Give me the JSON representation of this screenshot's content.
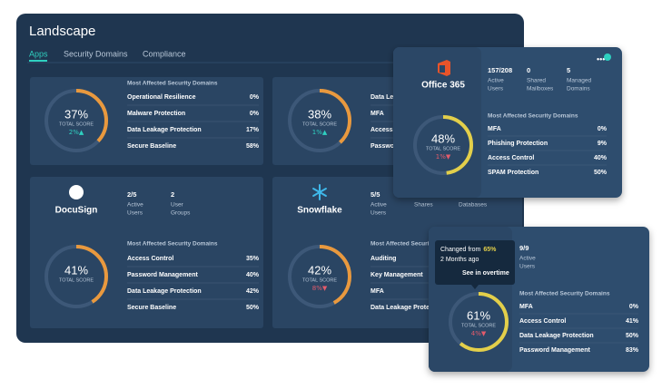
{
  "header": {
    "title": "Landscape",
    "tabs": [
      "Apps",
      "Security Domains",
      "Compliance"
    ]
  },
  "cards": [
    {
      "gauge": {
        "score": "37%",
        "label": "TOTAL SCORE",
        "change": "2%▲",
        "color": "#e9993e"
      },
      "domains": {
        "heading": "Most Affected Security Domains",
        "rows": [
          {
            "name": "Operational Resilience",
            "value": "0%"
          },
          {
            "name": "Malware Protection",
            "value": "0%"
          },
          {
            "name": "Data Leakage Protection",
            "value": "17%"
          },
          {
            "name": "Secure Baseline",
            "value": "58%"
          }
        ]
      }
    },
    {
      "gauge": {
        "score": "38%",
        "label": "TOTAL SCORE",
        "change": "1%▲",
        "color": "#e9993e"
      },
      "domains": {
        "rows": [
          {
            "name": "Data Lea"
          },
          {
            "name": "MFA"
          },
          {
            "name": "Access C"
          },
          {
            "name": "Passwo"
          }
        ]
      }
    },
    {
      "name": "DocuSign",
      "stats": [
        {
          "value": "2/5",
          "label": [
            "Active",
            "Users"
          ]
        },
        {
          "value": "2",
          "label": [
            "User",
            "Groups"
          ]
        }
      ],
      "gauge": {
        "score": "41%",
        "label": "TOTAL SCORE",
        "color": "#e9993e"
      },
      "domains": {
        "heading": "Most Affected Security Domains",
        "rows": [
          {
            "name": "Access Control",
            "value": "35%"
          },
          {
            "name": "Password Management",
            "value": "40%"
          },
          {
            "name": "Data Leakage Protection",
            "value": "42%"
          },
          {
            "name": "Secure Baseline",
            "value": "50%"
          }
        ]
      }
    },
    {
      "name": "Snowflake",
      "stats": [
        {
          "value": "5/5",
          "label": [
            "Active",
            "Users"
          ]
        },
        {
          "label": [
            "Shares"
          ]
        },
        {
          "label": [
            "Databases"
          ]
        }
      ],
      "gauge": {
        "score": "42%",
        "label": "TOTAL SCORE",
        "change": "8%▼",
        "color": "#e9993e"
      },
      "domains": {
        "heading": "Most Affected Security Domains",
        "rows": [
          {
            "name": "Auditing"
          },
          {
            "name": "Key Management"
          },
          {
            "name": "MFA"
          },
          {
            "name": "Data Leakage Protection"
          }
        ]
      }
    },
    {
      "name": "Office 365",
      "stats": [
        {
          "value": "157/208",
          "label": [
            "Active",
            "Users"
          ]
        },
        {
          "value": "0",
          "label": [
            "Shared",
            "Mailboxes"
          ]
        },
        {
          "value": "5",
          "label": [
            "Managed",
            "Domains"
          ]
        }
      ],
      "gauge": {
        "score": "48%",
        "label": "TOTAL SCORE",
        "change": "1%▼",
        "color": "#e3cf4a"
      },
      "domains": {
        "heading": "Most Affected Security Domains",
        "rows": [
          {
            "name": "MFA",
            "value": "0%"
          },
          {
            "name": "Phishing Protection",
            "value": "9%"
          },
          {
            "name": "Access Control",
            "value": "40%"
          },
          {
            "name": "SPAM Protection",
            "value": "50%"
          }
        ]
      }
    },
    {
      "stats": [
        {
          "value": "9/9",
          "label": [
            "Active",
            "Users"
          ]
        }
      ],
      "gauge": {
        "score": "61%",
        "label": "TOTAL SCORE",
        "change": "4%▼",
        "color": "#e3cf4a"
      },
      "domains": {
        "heading": "Most Affected Security Domains",
        "rows": [
          {
            "name": "MFA",
            "value": "0%"
          },
          {
            "name": "Access Control",
            "value": "41%"
          },
          {
            "name": "Data Leakage Protection",
            "value": "50%"
          },
          {
            "name": "Password Management",
            "value": "83%"
          }
        ]
      }
    }
  ],
  "tooltip": {
    "prefix": "Changed from",
    "highlight": "65%",
    "time": "2 Months ago",
    "action": "See in overtime"
  }
}
